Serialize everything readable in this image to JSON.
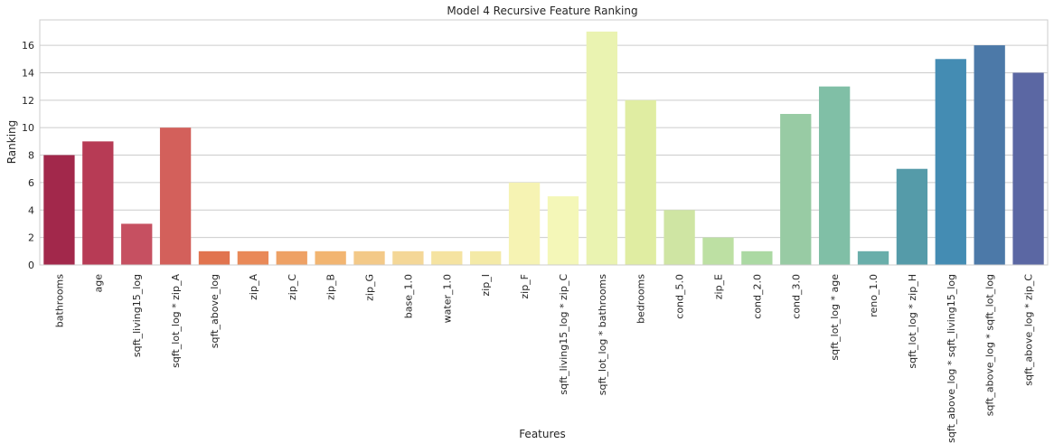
{
  "chart_data": {
    "type": "bar",
    "title": "Model 4 Recursive Feature Ranking",
    "xlabel": "Features",
    "ylabel": "Ranking",
    "ylim": [
      0,
      17.85
    ],
    "yticks": [
      0,
      2,
      4,
      6,
      8,
      10,
      12,
      14,
      16
    ],
    "grid": true,
    "categories": [
      "bathrooms",
      "age",
      "sqft_living15_log",
      "sqft_lot_log * zip_A",
      "sqft_above_log",
      "zip_A",
      "zip_C",
      "zip_B",
      "zip_G",
      "base_1.0",
      "water_1.0",
      "zip_I",
      "zip_F",
      "sqft_living15_log * zip_C",
      "sqft_lot_log * bathrooms",
      "bedrooms",
      "cond_5.0",
      "zip_E",
      "cond_2.0",
      "cond_3.0",
      "sqft_lot_log * age",
      "reno_1.0",
      "sqft_lot_log * zip_H",
      "sqft_above_log * sqft_living15_log",
      "sqft_above_log * sqft_lot_log",
      "sqft_above_log * zip_C"
    ],
    "values": [
      8,
      9,
      3,
      10,
      1,
      1,
      1,
      1,
      1,
      1,
      1,
      1,
      6,
      5,
      17,
      12,
      4,
      2,
      1,
      11,
      13,
      1,
      7,
      15,
      16,
      14
    ],
    "colors": [
      "#a2284b",
      "#b73b55",
      "#c65061",
      "#d3605b",
      "#e1744f",
      "#e98958",
      "#eea165",
      "#f2b571",
      "#f3c988",
      "#f4d797",
      "#f5e3a1",
      "#f4eaa7",
      "#f6f3b3",
      "#f4f7b8",
      "#eaf3b1",
      "#e0eda2",
      "#cfe5a3",
      "#bde0a3",
      "#abd9a3",
      "#98cba4",
      "#80bfa6",
      "#69aeaa",
      "#559ba9",
      "#448cb3",
      "#4c79a8",
      "#5b67a3"
    ]
  }
}
